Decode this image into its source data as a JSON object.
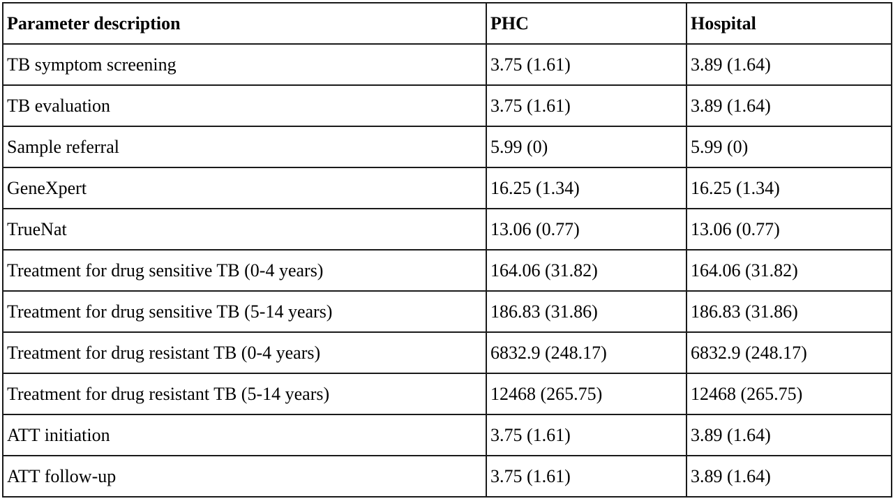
{
  "table": {
    "headers": [
      "Parameter description",
      "PHC",
      "Hospital"
    ],
    "rows": [
      [
        "TB symptom screening",
        "3.75 (1.61)",
        "3.89 (1.64)"
      ],
      [
        "TB evaluation",
        "3.75 (1.61)",
        "3.89 (1.64)"
      ],
      [
        "Sample referral",
        "5.99 (0)",
        "5.99 (0)"
      ],
      [
        "GeneXpert",
        "16.25 (1.34)",
        "16.25 (1.34)"
      ],
      [
        "TrueNat",
        "13.06 (0.77)",
        "13.06 (0.77)"
      ],
      [
        "Treatment for drug sensitive TB (0-4 years)",
        "164.06 (31.82)",
        "164.06 (31.82)"
      ],
      [
        "Treatment for drug sensitive TB (5-14 years)",
        "186.83 (31.86)",
        "186.83 (31.86)"
      ],
      [
        "Treatment for drug resistant TB (0-4 years)",
        "6832.9 (248.17)",
        "6832.9 (248.17)"
      ],
      [
        "Treatment for drug resistant TB (5-14 years)",
        "12468 (265.75)",
        "12468 (265.75)"
      ],
      [
        "ATT initiation",
        "3.75 (1.61)",
        "3.89 (1.64)"
      ],
      [
        "ATT follow-up",
        "3.75 (1.61)",
        "3.89 (1.64)"
      ]
    ]
  }
}
